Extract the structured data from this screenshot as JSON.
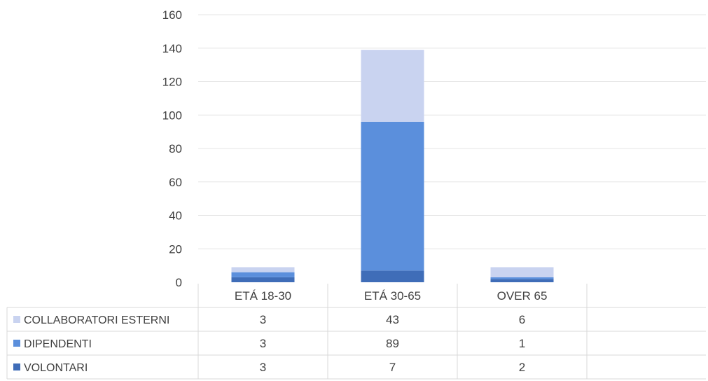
{
  "chart_data": {
    "type": "bar",
    "stacked": true,
    "categories": [
      "ETÁ 18-30",
      "ETÁ 30-65",
      "OVER 65"
    ],
    "series": [
      {
        "name": "VOLONTARI",
        "values": [
          3,
          7,
          2
        ],
        "color": "#3f6db8"
      },
      {
        "name": "DIPENDENTI",
        "values": [
          3,
          89,
          1
        ],
        "color": "#5b8fdc"
      },
      {
        "name": "COLLABORATORI ESTERNI",
        "values": [
          3,
          43,
          6
        ],
        "color": "#c9d3f0"
      }
    ],
    "ylim": [
      0,
      160
    ],
    "yticks": [
      0,
      20,
      40,
      60,
      80,
      100,
      120,
      140,
      160
    ],
    "legend": "data-table",
    "grid": true
  }
}
